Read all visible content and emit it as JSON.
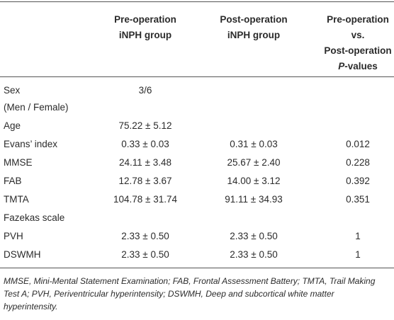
{
  "table": {
    "headers": [
      [
        "Pre-operation",
        "iNPH group"
      ],
      [
        "Post-operation",
        "iNPH group"
      ],
      [
        "Pre-operation",
        "vs.",
        "Post-operation"
      ]
    ],
    "p_header_italic": "P",
    "p_header_rest": "-values",
    "rows": [
      {
        "label": [
          "Sex",
          "(Men / Female)"
        ],
        "pre": "3/6"
      },
      {
        "label": [
          "Age"
        ],
        "pre": "75.22 ± 5.12"
      },
      {
        "label": [
          "Evans’ index"
        ],
        "pre": "0.33 ± 0.03",
        "post": "0.31 ± 0.03",
        "p": "0.012"
      },
      {
        "label": [
          "MMSE"
        ],
        "pre": "24.11 ± 3.48",
        "post": "25.67 ± 2.40",
        "p": "0.228"
      },
      {
        "label": [
          "FAB"
        ],
        "pre": "12.78 ± 3.67",
        "post": "14.00 ± 3.12",
        "p": "0.392"
      },
      {
        "label": [
          "TMTA"
        ],
        "pre": "104.78 ± 31.74",
        "post": "91.11 ± 34.93",
        "p": "0.351"
      },
      {
        "label": [
          "Fazekas scale"
        ]
      },
      {
        "label": [
          "PVH"
        ],
        "pre": "2.33 ± 0.50",
        "post": "2.33 ± 0.50",
        "p": "1"
      },
      {
        "label": [
          "DSWMH"
        ],
        "pre": "2.33 ± 0.50",
        "post": "2.33 ± 0.50",
        "p": "1"
      }
    ],
    "footnote": "MMSE, Mini-Mental Statement Examination; FAB, Frontal Assessment Battery; TMTA, Trail Making Test A; PVH, Periventricular hyperintensity; DSWMH, Deep and subcortical white matter hyperintensity."
  }
}
